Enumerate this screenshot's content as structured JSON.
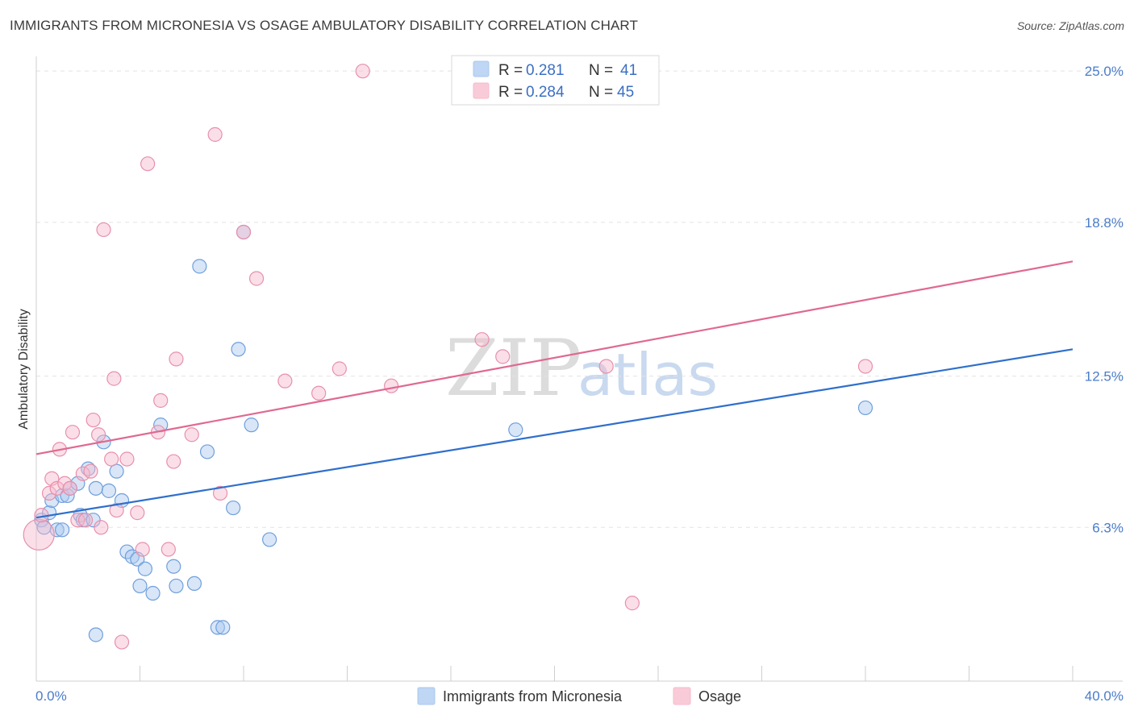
{
  "header": {
    "title": "IMMIGRANTS FROM MICRONESIA VS OSAGE AMBULATORY DISABILITY CORRELATION CHART",
    "source": "Source: ZipAtlas.com"
  },
  "watermark": {
    "zip": "ZIP",
    "atlas": "atlas"
  },
  "legend": {
    "rows": [
      {
        "r_label": "R =",
        "r_value": "0.281",
        "n_label": "N =",
        "n_value": "41",
        "color": "#a9c8f0"
      },
      {
        "r_label": "R =",
        "r_value": "0.284",
        "n_label": "N =",
        "n_value": "45",
        "color": "#f7b9cb"
      }
    ]
  },
  "bottom_legend": [
    {
      "label": "Immigrants from Micronesia",
      "color": "#a9c8f0"
    },
    {
      "label": "Osage",
      "color": "#f7b9cb"
    }
  ],
  "chart_data": {
    "type": "scatter",
    "title": "IMMIGRANTS FROM MICRONESIA VS OSAGE AMBULATORY DISABILITY CORRELATION CHART",
    "xlabel": "",
    "ylabel": "Ambulatory Disability",
    "xlim": [
      0,
      40
    ],
    "ylim": [
      0,
      25.6
    ],
    "x_tick_labels": [
      {
        "value": 0,
        "label": "0.0%"
      },
      {
        "value": 40,
        "label": "40.0%"
      }
    ],
    "y_tick_labels": [
      {
        "value": 6.3,
        "label": "6.3%"
      },
      {
        "value": 12.5,
        "label": "12.5%"
      },
      {
        "value": 18.8,
        "label": "18.8%"
      },
      {
        "value": 25.0,
        "label": "25.0%"
      }
    ],
    "grid": true,
    "legend_position": "top-center",
    "series": [
      {
        "name": "Immigrants from Micronesia",
        "color": "#a9c8f0",
        "stroke": "#6f9fdc",
        "line_color": "#2f6fcc",
        "trend": {
          "x": [
            0,
            40
          ],
          "y": [
            6.7,
            13.6
          ]
        },
        "points": [
          [
            0.2,
            6.6
          ],
          [
            0.5,
            6.9
          ],
          [
            0.6,
            7.4
          ],
          [
            0.8,
            6.2
          ],
          [
            1.0,
            7.6
          ],
          [
            1.2,
            7.6
          ],
          [
            1.3,
            7.9
          ],
          [
            1.6,
            8.1
          ],
          [
            1.7,
            6.8
          ],
          [
            1.8,
            6.6
          ],
          [
            2.0,
            8.7
          ],
          [
            2.2,
            6.6
          ],
          [
            2.3,
            7.9
          ],
          [
            2.6,
            9.8
          ],
          [
            2.8,
            7.8
          ],
          [
            3.1,
            8.6
          ],
          [
            3.3,
            7.4
          ],
          [
            3.5,
            5.3
          ],
          [
            3.7,
            5.1
          ],
          [
            3.9,
            5.0
          ],
          [
            4.0,
            3.9
          ],
          [
            4.2,
            4.6
          ],
          [
            4.5,
            3.6
          ],
          [
            4.8,
            10.5
          ],
          [
            5.3,
            4.7
          ],
          [
            5.4,
            3.9
          ],
          [
            6.1,
            4.0
          ],
          [
            6.3,
            17.0
          ],
          [
            6.6,
            9.4
          ],
          [
            7.0,
            2.2
          ],
          [
            7.2,
            2.2
          ],
          [
            7.6,
            7.1
          ],
          [
            7.8,
            13.6
          ],
          [
            8.0,
            18.4
          ],
          [
            8.3,
            10.5
          ],
          [
            9.0,
            5.8
          ],
          [
            18.5,
            10.3
          ],
          [
            32.0,
            11.2
          ],
          [
            2.3,
            1.9
          ],
          [
            0.3,
            6.3
          ],
          [
            1.0,
            6.2
          ]
        ]
      },
      {
        "name": "Osage",
        "color": "#f7b9cb",
        "stroke": "#e890ab",
        "line_color": "#e06990",
        "trend": {
          "x": [
            0,
            40
          ],
          "y": [
            9.3,
            17.2
          ]
        },
        "points": [
          [
            0.1,
            6.0
          ],
          [
            0.2,
            6.8
          ],
          [
            0.5,
            7.7
          ],
          [
            0.6,
            8.3
          ],
          [
            0.8,
            7.9
          ],
          [
            0.9,
            9.5
          ],
          [
            1.1,
            8.1
          ],
          [
            1.3,
            7.9
          ],
          [
            1.4,
            10.2
          ],
          [
            1.6,
            6.6
          ],
          [
            1.8,
            8.5
          ],
          [
            1.9,
            6.6
          ],
          [
            2.1,
            8.6
          ],
          [
            2.2,
            10.7
          ],
          [
            2.4,
            10.1
          ],
          [
            2.5,
            6.3
          ],
          [
            2.6,
            18.5
          ],
          [
            2.9,
            9.1
          ],
          [
            3.0,
            12.4
          ],
          [
            3.1,
            7.0
          ],
          [
            3.5,
            9.1
          ],
          [
            3.9,
            6.9
          ],
          [
            4.1,
            5.4
          ],
          [
            4.3,
            21.2
          ],
          [
            4.7,
            10.2
          ],
          [
            4.8,
            11.5
          ],
          [
            5.1,
            5.4
          ],
          [
            5.3,
            9.0
          ],
          [
            5.4,
            13.2
          ],
          [
            6.0,
            10.1
          ],
          [
            6.9,
            22.4
          ],
          [
            7.1,
            7.7
          ],
          [
            8.0,
            18.4
          ],
          [
            8.5,
            16.5
          ],
          [
            9.6,
            12.3
          ],
          [
            10.9,
            11.8
          ],
          [
            11.7,
            12.8
          ],
          [
            12.6,
            25.0
          ],
          [
            13.7,
            12.1
          ],
          [
            17.2,
            14.0
          ],
          [
            18.0,
            13.3
          ],
          [
            22.0,
            12.9
          ],
          [
            23.0,
            3.2
          ],
          [
            32.0,
            12.9
          ],
          [
            3.3,
            1.6
          ]
        ]
      }
    ]
  }
}
